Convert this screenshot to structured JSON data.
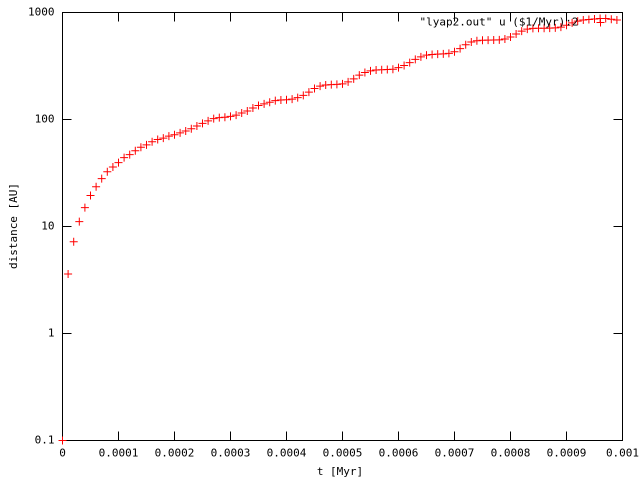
{
  "chart_data": {
    "type": "scatter",
    "xlabel": "t [Myr]",
    "ylabel": "distance [AU]",
    "x": [
      0,
      1e-05,
      2e-05,
      3e-05,
      4e-05,
      5e-05,
      6e-05,
      7e-05,
      8e-05,
      9e-05,
      0.0001,
      0.00011,
      0.00012,
      0.00013,
      0.00014,
      0.00015,
      0.00016,
      0.00017,
      0.00018,
      0.00019,
      0.0002,
      0.00021,
      0.00022,
      0.00023,
      0.00024,
      0.00025,
      0.00026,
      0.00027,
      0.00028,
      0.00029,
      0.0003,
      0.00031,
      0.00032,
      0.00033,
      0.00034,
      0.00035,
      0.00036,
      0.00037,
      0.00038,
      0.00039,
      0.0004,
      0.00041,
      0.00042,
      0.00043,
      0.00044,
      0.00045,
      0.00046,
      0.00047,
      0.00048,
      0.00049,
      0.0005,
      0.00051,
      0.00052,
      0.00053,
      0.00054,
      0.00055,
      0.00056,
      0.00057,
      0.00058,
      0.00059,
      0.0006,
      0.00061,
      0.00062,
      0.00063,
      0.00064,
      0.00065,
      0.00066,
      0.00067,
      0.00068,
      0.00069,
      0.0007,
      0.00071,
      0.00072,
      0.00073,
      0.00074,
      0.00075,
      0.00076,
      0.00077,
      0.00078,
      0.00079,
      0.0008,
      0.00081,
      0.00082,
      0.00083,
      0.00084,
      0.00085,
      0.00086,
      0.00087,
      0.00088,
      0.00089,
      0.0009,
      0.00091,
      0.00092,
      0.00093,
      0.00094,
      0.00095,
      0.00096,
      0.00097,
      0.00098,
      0.00099
    ],
    "series": [
      {
        "name": "\"lyap2.out\" u ($1/Myr):2",
        "color": "#ff0000",
        "values": [
          0.1,
          3.6,
          7.2,
          11.1,
          15,
          19.5,
          23.5,
          28,
          32.5,
          36,
          39.5,
          44,
          47,
          51,
          55,
          58,
          62,
          65,
          67,
          70,
          72,
          75,
          78,
          82,
          87,
          92,
          97,
          102,
          104,
          105,
          107,
          110,
          115,
          120,
          128,
          135,
          140,
          145,
          150,
          152,
          153,
          155,
          160,
          168,
          180,
          195,
          205,
          210,
          212,
          213,
          215,
          225,
          240,
          260,
          275,
          285,
          290,
          292,
          293,
          295,
          305,
          320,
          340,
          365,
          385,
          400,
          405,
          408,
          410,
          415,
          430,
          460,
          500,
          530,
          545,
          550,
          552,
          553,
          555,
          565,
          590,
          630,
          670,
          700,
          710,
          712,
          713,
          715,
          718,
          730,
          760,
          800,
          830,
          850,
          860,
          870,
          880,
          880,
          865,
          850
        ]
      }
    ],
    "xlim": [
      0,
      0.001
    ],
    "ylim": [
      0.1,
      1000
    ],
    "xticks": [
      0,
      0.0001,
      0.0002,
      0.0003,
      0.0004,
      0.0005,
      0.0006,
      0.0007,
      0.0008,
      0.0009,
      0.001
    ],
    "yticks": [
      0.1,
      1,
      10,
      100,
      1000
    ],
    "ylog": true,
    "legend": "top-right"
  }
}
